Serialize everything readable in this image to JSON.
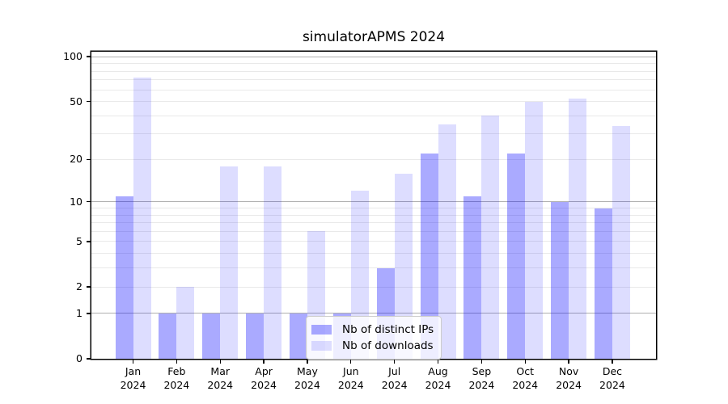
{
  "chart_data": {
    "type": "bar",
    "title": "simulatorAPMS 2024",
    "categories": [
      "Jan",
      "Feb",
      "Mar",
      "Apr",
      "May",
      "Jun",
      "Jul",
      "Aug",
      "Sep",
      "Oct",
      "Nov",
      "Dec"
    ],
    "year_label": "2024",
    "series": [
      {
        "name": "Nb of distinct IPs",
        "color": "#0000FF55",
        "values": [
          11,
          1,
          1,
          1,
          1,
          1,
          3,
          22,
          11,
          22,
          10,
          9
        ]
      },
      {
        "name": "Nb of downloads",
        "color": "#0000FF22",
        "values": [
          72,
          2,
          18,
          18,
          6,
          12,
          16,
          35,
          40,
          50,
          52,
          34
        ]
      }
    ],
    "y_scale": "log10(1+v)",
    "y_ticks": [
      0,
      1,
      2,
      5,
      10,
      20,
      50,
      100
    ],
    "y_axis_max": 108,
    "grid_major": [
      1,
      10,
      100
    ],
    "grid_minor": [
      2,
      3,
      4,
      5,
      6,
      7,
      8,
      9,
      20,
      30,
      40,
      50,
      60,
      70,
      80,
      90
    ],
    "grid_major_color": "#b0b0b0",
    "grid_minor_color": "#e9e9e9",
    "axis_color": "#000000",
    "legend_position": "lower-center"
  }
}
